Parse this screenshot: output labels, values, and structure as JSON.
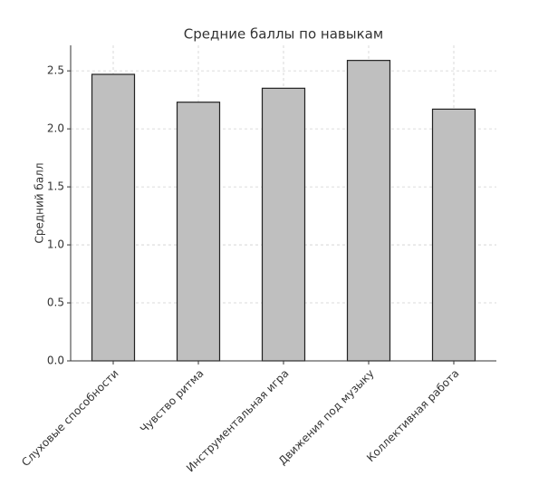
{
  "chart_data": {
    "type": "bar",
    "title": "Средние баллы по навыкам",
    "ylabel": "Средний балл",
    "categories": [
      "Слуховые способности",
      "Чувство ритма",
      "Инструментальная игра",
      "Движения под музыку",
      "Коллективная работа"
    ],
    "values": [
      2.47,
      2.23,
      2.35,
      2.59,
      2.17
    ],
    "color": "#bfbfbf",
    "ylim": [
      0,
      2.72
    ],
    "yticks": [
      {
        "value": 0,
        "label": "0.0"
      },
      {
        "value": 0.5,
        "label": "0.5"
      },
      {
        "value": 1,
        "label": "1.0"
      },
      {
        "value": 1.5,
        "label": "1.5"
      },
      {
        "value": 2,
        "label": "2.0"
      },
      {
        "value": 2.5,
        "label": "2.5"
      }
    ],
    "grid": true
  }
}
